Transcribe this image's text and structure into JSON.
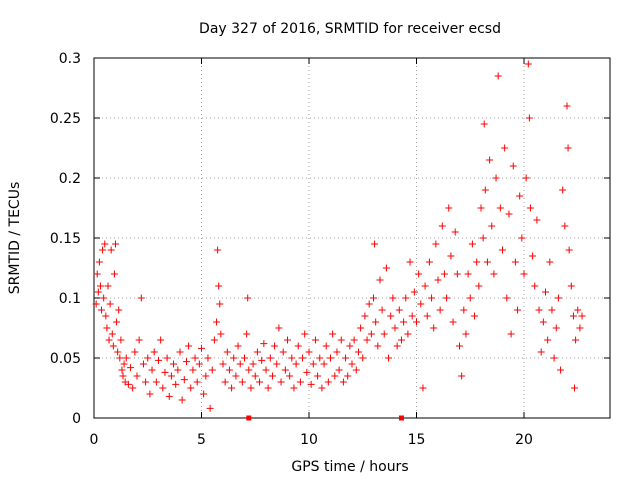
{
  "chart_data": {
    "type": "scatter",
    "title": "Day 327 of 2016, SRMTID for receiver ecsd",
    "xlabel": "GPS time / hours",
    "ylabel": "SRMTID / TECUs",
    "xlim": [
      0,
      24
    ],
    "ylim": [
      0,
      0.3
    ],
    "xticks": [
      0,
      5,
      10,
      15,
      20
    ],
    "xtick_labels": [
      "0",
      "5",
      "10",
      "15",
      "20"
    ],
    "yticks": [
      0,
      0.05,
      0.1,
      0.15,
      0.2,
      0.25,
      0.3
    ],
    "ytick_labels": [
      "0",
      "0.05",
      "0.1",
      "0.15",
      "0.2",
      "0.25",
      "0.3"
    ],
    "grid": true,
    "marker": "plus",
    "color": "#ff0000",
    "series": [
      {
        "name": "SRMTID",
        "points": [
          [
            0.1,
            0.095
          ],
          [
            0.15,
            0.12
          ],
          [
            0.2,
            0.105
          ],
          [
            0.25,
            0.13
          ],
          [
            0.3,
            0.11
          ],
          [
            0.35,
            0.09
          ],
          [
            0.4,
            0.14
          ],
          [
            0.45,
            0.1
          ],
          [
            0.5,
            0.145
          ],
          [
            0.55,
            0.085
          ],
          [
            0.6,
            0.075
          ],
          [
            0.65,
            0.11
          ],
          [
            0.7,
            0.065
          ],
          [
            0.75,
            0.095
          ],
          [
            0.8,
            0.14
          ],
          [
            0.85,
            0.07
          ],
          [
            0.9,
            0.06
          ],
          [
            0.95,
            0.12
          ],
          [
            1.0,
            0.145
          ],
          [
            1.05,
            0.08
          ],
          [
            1.1,
            0.055
          ],
          [
            1.15,
            0.09
          ],
          [
            1.2,
            0.05
          ],
          [
            1.25,
            0.065
          ],
          [
            1.3,
            0.04
          ],
          [
            1.35,
            0.035
          ],
          [
            1.4,
            0.045
          ],
          [
            1.45,
            0.03
          ],
          [
            1.5,
            0.05
          ],
          [
            1.6,
            0.028
          ],
          [
            1.7,
            0.042
          ],
          [
            1.8,
            0.025
          ],
          [
            1.9,
            0.055
          ],
          [
            2.0,
            0.035
          ],
          [
            2.1,
            0.065
          ],
          [
            2.2,
            0.1
          ],
          [
            2.3,
            0.045
          ],
          [
            2.4,
            0.03
          ],
          [
            2.5,
            0.05
          ],
          [
            2.6,
            0.02
          ],
          [
            2.7,
            0.04
          ],
          [
            2.8,
            0.055
          ],
          [
            2.9,
            0.03
          ],
          [
            3.0,
            0.048
          ],
          [
            3.1,
            0.065
          ],
          [
            3.2,
            0.025
          ],
          [
            3.3,
            0.038
          ],
          [
            3.4,
            0.05
          ],
          [
            3.5,
            0.018
          ],
          [
            3.6,
            0.035
          ],
          [
            3.7,
            0.045
          ],
          [
            3.8,
            0.028
          ],
          [
            3.9,
            0.04
          ],
          [
            4.0,
            0.055
          ],
          [
            4.1,
            0.015
          ],
          [
            4.2,
            0.032
          ],
          [
            4.3,
            0.047
          ],
          [
            4.4,
            0.06
          ],
          [
            4.5,
            0.025
          ],
          [
            4.6,
            0.04
          ],
          [
            4.7,
            0.05
          ],
          [
            4.8,
            0.03
          ],
          [
            4.9,
            0.045
          ],
          [
            5.0,
            0.058
          ],
          [
            5.1,
            0.02
          ],
          [
            5.2,
            0.035
          ],
          [
            5.3,
            0.05
          ],
          [
            5.4,
            0.008
          ],
          [
            5.5,
            0.04
          ],
          [
            5.6,
            0.065
          ],
          [
            5.7,
            0.08
          ],
          [
            5.75,
            0.14
          ],
          [
            5.8,
            0.11
          ],
          [
            5.85,
            0.095
          ],
          [
            5.9,
            0.07
          ],
          [
            6.0,
            0.045
          ],
          [
            6.1,
            0.03
          ],
          [
            6.2,
            0.055
          ],
          [
            6.3,
            0.04
          ],
          [
            6.4,
            0.025
          ],
          [
            6.5,
            0.05
          ],
          [
            6.6,
            0.035
          ],
          [
            6.7,
            0.06
          ],
          [
            6.8,
            0.045
          ],
          [
            6.9,
            0.03
          ],
          [
            7.0,
            0.05
          ],
          [
            7.1,
            0.07
          ],
          [
            7.15,
            0.1
          ],
          [
            7.2,
            0.04
          ],
          [
            7.3,
            0.025
          ],
          [
            7.4,
            0.045
          ],
          [
            7.5,
            0.035
          ],
          [
            7.6,
            0.055
          ],
          [
            7.7,
            0.03
          ],
          [
            7.8,
            0.048
          ],
          [
            7.9,
            0.062
          ],
          [
            8.0,
            0.04
          ],
          [
            8.1,
            0.025
          ],
          [
            8.2,
            0.05
          ],
          [
            8.3,
            0.035
          ],
          [
            8.4,
            0.06
          ],
          [
            8.5,
            0.045
          ],
          [
            8.6,
            0.075
          ],
          [
            8.7,
            0.03
          ],
          [
            8.8,
            0.055
          ],
          [
            8.9,
            0.04
          ],
          [
            9.0,
            0.065
          ],
          [
            9.1,
            0.035
          ],
          [
            9.2,
            0.05
          ],
          [
            9.3,
            0.025
          ],
          [
            9.4,
            0.045
          ],
          [
            9.5,
            0.06
          ],
          [
            9.6,
            0.03
          ],
          [
            9.7,
            0.05
          ],
          [
            9.8,
            0.07
          ],
          [
            9.9,
            0.038
          ],
          [
            10.0,
            0.055
          ],
          [
            10.1,
            0.028
          ],
          [
            10.2,
            0.045
          ],
          [
            10.3,
            0.065
          ],
          [
            10.4,
            0.035
          ],
          [
            10.5,
            0.05
          ],
          [
            10.6,
            0.025
          ],
          [
            10.7,
            0.045
          ],
          [
            10.8,
            0.06
          ],
          [
            10.9,
            0.03
          ],
          [
            11.0,
            0.05
          ],
          [
            11.1,
            0.07
          ],
          [
            11.2,
            0.035
          ],
          [
            11.3,
            0.055
          ],
          [
            11.4,
            0.04
          ],
          [
            11.5,
            0.065
          ],
          [
            11.6,
            0.03
          ],
          [
            11.7,
            0.05
          ],
          [
            11.8,
            0.035
          ],
          [
            11.9,
            0.06
          ],
          [
            12.0,
            0.045
          ],
          [
            12.1,
            0.065
          ],
          [
            12.2,
            0.04
          ],
          [
            12.3,
            0.055
          ],
          [
            12.4,
            0.075
          ],
          [
            12.5,
            0.05
          ],
          [
            12.6,
            0.085
          ],
          [
            12.7,
            0.065
          ],
          [
            12.8,
            0.095
          ],
          [
            12.9,
            0.07
          ],
          [
            13.0,
            0.1
          ],
          [
            13.05,
            0.145
          ],
          [
            13.1,
            0.08
          ],
          [
            13.2,
            0.06
          ],
          [
            13.3,
            0.115
          ],
          [
            13.4,
            0.09
          ],
          [
            13.5,
            0.07
          ],
          [
            13.6,
            0.125
          ],
          [
            13.7,
            0.05
          ],
          [
            13.8,
            0.085
          ],
          [
            13.9,
            0.1
          ],
          [
            14.0,
            0.075
          ],
          [
            14.1,
            0.06
          ],
          [
            14.2,
            0.09
          ],
          [
            14.3,
            0.065
          ],
          [
            14.4,
            0.08
          ],
          [
            14.5,
            0.1
          ],
          [
            14.6,
            0.07
          ],
          [
            14.7,
            0.13
          ],
          [
            14.8,
            0.085
          ],
          [
            14.9,
            0.105
          ],
          [
            15.0,
            0.08
          ],
          [
            15.1,
            0.12
          ],
          [
            15.2,
            0.095
          ],
          [
            15.3,
            0.025
          ],
          [
            15.4,
            0.11
          ],
          [
            15.5,
            0.085
          ],
          [
            15.6,
            0.13
          ],
          [
            15.7,
            0.1
          ],
          [
            15.8,
            0.075
          ],
          [
            15.9,
            0.145
          ],
          [
            16.0,
            0.115
          ],
          [
            16.1,
            0.09
          ],
          [
            16.2,
            0.16
          ],
          [
            16.3,
            0.12
          ],
          [
            16.4,
            0.1
          ],
          [
            16.5,
            0.175
          ],
          [
            16.6,
            0.135
          ],
          [
            16.7,
            0.08
          ],
          [
            16.8,
            0.155
          ],
          [
            16.9,
            0.12
          ],
          [
            17.0,
            0.06
          ],
          [
            17.1,
            0.035
          ],
          [
            17.2,
            0.09
          ],
          [
            17.3,
            0.07
          ],
          [
            17.4,
            0.12
          ],
          [
            17.5,
            0.1
          ],
          [
            17.6,
            0.145
          ],
          [
            17.7,
            0.085
          ],
          [
            17.8,
            0.13
          ],
          [
            17.9,
            0.11
          ],
          [
            18.0,
            0.175
          ],
          [
            18.1,
            0.15
          ],
          [
            18.15,
            0.245
          ],
          [
            18.2,
            0.19
          ],
          [
            18.3,
            0.13
          ],
          [
            18.4,
            0.215
          ],
          [
            18.5,
            0.16
          ],
          [
            18.6,
            0.12
          ],
          [
            18.7,
            0.2
          ],
          [
            18.8,
            0.285
          ],
          [
            18.9,
            0.175
          ],
          [
            19.0,
            0.14
          ],
          [
            19.1,
            0.225
          ],
          [
            19.2,
            0.1
          ],
          [
            19.3,
            0.17
          ],
          [
            19.4,
            0.07
          ],
          [
            19.5,
            0.21
          ],
          [
            19.6,
            0.13
          ],
          [
            19.7,
            0.09
          ],
          [
            19.8,
            0.185
          ],
          [
            19.9,
            0.15
          ],
          [
            20.0,
            0.12
          ],
          [
            20.1,
            0.2
          ],
          [
            20.2,
            0.295
          ],
          [
            20.25,
            0.25
          ],
          [
            20.3,
            0.175
          ],
          [
            20.4,
            0.135
          ],
          [
            20.5,
            0.11
          ],
          [
            20.6,
            0.165
          ],
          [
            20.7,
            0.09
          ],
          [
            20.8,
            0.055
          ],
          [
            20.9,
            0.08
          ],
          [
            21.0,
            0.105
          ],
          [
            21.1,
            0.065
          ],
          [
            21.2,
            0.13
          ],
          [
            21.3,
            0.09
          ],
          [
            21.4,
            0.05
          ],
          [
            21.5,
            0.075
          ],
          [
            21.6,
            0.1
          ],
          [
            21.7,
            0.04
          ],
          [
            21.8,
            0.19
          ],
          [
            21.9,
            0.16
          ],
          [
            22.0,
            0.26
          ],
          [
            22.05,
            0.225
          ],
          [
            22.1,
            0.14
          ],
          [
            22.2,
            0.11
          ],
          [
            22.3,
            0.085
          ],
          [
            22.35,
            0.025
          ],
          [
            22.4,
            0.065
          ],
          [
            22.5,
            0.09
          ],
          [
            22.6,
            0.075
          ],
          [
            22.7,
            0.085
          ]
        ]
      }
    ],
    "gap_markers_x": [
      7.2,
      14.3
    ]
  }
}
